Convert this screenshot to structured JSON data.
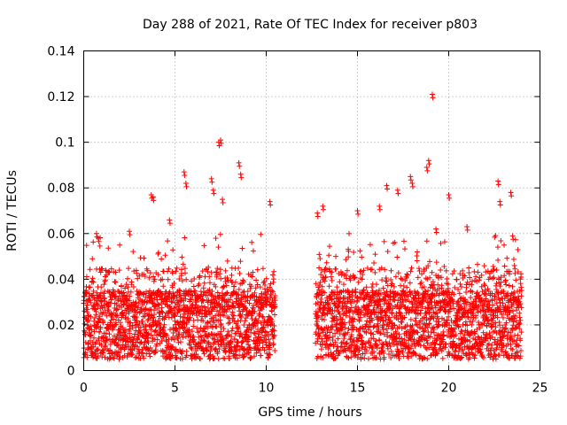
{
  "chart_data": {
    "type": "scatter",
    "title": "Day 288 of 2021, Rate Of TEC Index for receiver p803",
    "xlabel": "GPS time / hours",
    "ylabel": "ROTI / TECUs",
    "xlim": [
      0,
      25
    ],
    "ylim": [
      0,
      0.14
    ],
    "xticks": [
      0,
      5,
      10,
      15,
      20,
      25
    ],
    "xtick_labels": [
      "0",
      "5",
      "10",
      "15",
      "20",
      "25"
    ],
    "yticks": [
      0,
      0.02,
      0.04,
      0.06,
      0.08,
      0.1,
      0.12,
      0.14
    ],
    "ytick_labels": [
      "0",
      "0.02",
      "0.04",
      "0.06",
      "0.08",
      "0.1",
      "0.12",
      "0.14"
    ],
    "grid": true,
    "marker": "+",
    "color": "#ff0000",
    "data_gap_hours": [
      10.5,
      12.7
    ],
    "typical_band": [
      0.005,
      0.035
    ],
    "notable_points": [
      {
        "x": 7.4,
        "y": 0.1
      },
      {
        "x": 7.5,
        "y": 0.101
      },
      {
        "x": 8.5,
        "y": 0.091
      },
      {
        "x": 8.6,
        "y": 0.086
      },
      {
        "x": 18.9,
        "y": 0.092
      },
      {
        "x": 18.8,
        "y": 0.089
      },
      {
        "x": 19.1,
        "y": 0.121
      },
      {
        "x": 5.5,
        "y": 0.087
      },
      {
        "x": 5.6,
        "y": 0.082
      },
      {
        "x": 7.0,
        "y": 0.084
      },
      {
        "x": 7.1,
        "y": 0.079
      },
      {
        "x": 3.7,
        "y": 0.077
      },
      {
        "x": 3.8,
        "y": 0.076
      },
      {
        "x": 7.6,
        "y": 0.075
      },
      {
        "x": 10.2,
        "y": 0.074
      },
      {
        "x": 0.7,
        "y": 0.06
      },
      {
        "x": 0.8,
        "y": 0.058
      },
      {
        "x": 2.5,
        "y": 0.061
      },
      {
        "x": 4.7,
        "y": 0.066
      },
      {
        "x": 12.8,
        "y": 0.069
      },
      {
        "x": 13.1,
        "y": 0.072
      },
      {
        "x": 15.0,
        "y": 0.07
      },
      {
        "x": 16.2,
        "y": 0.072
      },
      {
        "x": 16.6,
        "y": 0.081
      },
      {
        "x": 17.2,
        "y": 0.079
      },
      {
        "x": 17.9,
        "y": 0.085
      },
      {
        "x": 18.0,
        "y": 0.082
      },
      {
        "x": 20.0,
        "y": 0.077
      },
      {
        "x": 22.7,
        "y": 0.083
      },
      {
        "x": 22.8,
        "y": 0.074
      },
      {
        "x": 23.4,
        "y": 0.078
      },
      {
        "x": 23.5,
        "y": 0.059
      },
      {
        "x": 23.6,
        "y": 0.046
      },
      {
        "x": 21.0,
        "y": 0.063
      },
      {
        "x": 19.3,
        "y": 0.062
      }
    ]
  }
}
